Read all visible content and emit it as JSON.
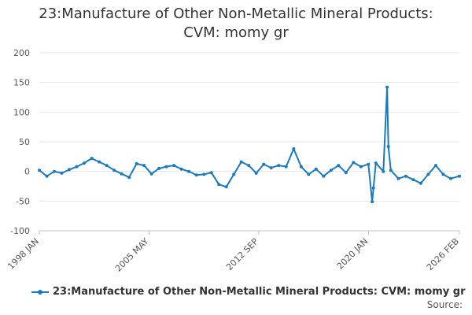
{
  "title_line1": "23:Manufacture of Other Non-Metallic Mineral Products:",
  "title_line2": "CVM: momy gr",
  "source_label": "Source:",
  "chart_data": {
    "type": "line",
    "title": "23:Manufacture of Other Non-Metallic Mineral Products: CVM: momy gr",
    "xlabel": "",
    "ylabel": "",
    "ylim": [
      -100,
      200
    ],
    "y_ticks": [
      200,
      150,
      100,
      50,
      0,
      -50,
      -100
    ],
    "x_tick_labels": [
      "1998 JAN",
      "2005 MAY",
      "2012 SEP",
      "2020 JAN",
      "2026 FEB"
    ],
    "x_range": [
      "1998 JAN",
      "2026 FEB"
    ],
    "grid": true,
    "legend_position": "bottom",
    "color": "#1a7abf",
    "series": [
      {
        "name": "23:Manufacture of Other Non-Metallic Mineral Products: CVM: momy gr",
        "points": [
          [
            "1998 JAN",
            2
          ],
          [
            "1998 JUL",
            -8
          ],
          [
            "1999 JAN",
            0
          ],
          [
            "1999 JUL",
            -3
          ],
          [
            "2000 JAN",
            3
          ],
          [
            "2000 JUL",
            8
          ],
          [
            "2001 JAN",
            14
          ],
          [
            "2001 JUL",
            22
          ],
          [
            "2002 JAN",
            16
          ],
          [
            "2002 JUL",
            10
          ],
          [
            "2003 JAN",
            2
          ],
          [
            "2003 JUL",
            -4
          ],
          [
            "2004 JAN",
            -10
          ],
          [
            "2004 JUL",
            13
          ],
          [
            "2005 JAN",
            10
          ],
          [
            "2005 JUL",
            -4
          ],
          [
            "2006 JAN",
            5
          ],
          [
            "2006 JUL",
            8
          ],
          [
            "2007 JAN",
            10
          ],
          [
            "2007 JUL",
            4
          ],
          [
            "2008 JAN",
            0
          ],
          [
            "2008 JUL",
            -6
          ],
          [
            "2009 JAN",
            -5
          ],
          [
            "2009 JUL",
            -2
          ],
          [
            "2010 JAN",
            -22
          ],
          [
            "2010 JUL",
            -26
          ],
          [
            "2011 JAN",
            -5
          ],
          [
            "2011 JUL",
            16
          ],
          [
            "2012 JAN",
            10
          ],
          [
            "2012 JUL",
            -3
          ],
          [
            "2013 JAN",
            12
          ],
          [
            "2013 JUL",
            6
          ],
          [
            "2014 JAN",
            10
          ],
          [
            "2014 JUL",
            8
          ],
          [
            "2015 JAN",
            38
          ],
          [
            "2015 JUL",
            8
          ],
          [
            "2016 JAN",
            -5
          ],
          [
            "2016 JUL",
            4
          ],
          [
            "2017 JAN",
            -8
          ],
          [
            "2017 JUL",
            2
          ],
          [
            "2018 JAN",
            10
          ],
          [
            "2018 JUL",
            -2
          ],
          [
            "2019 JAN",
            15
          ],
          [
            "2019 JUL",
            8
          ],
          [
            "2020 JAN",
            12
          ],
          [
            "2020 APR",
            -51
          ],
          [
            "2020 MAY",
            -28
          ],
          [
            "2020 JUL",
            14
          ],
          [
            "2021 JAN",
            0
          ],
          [
            "2021 APR",
            142
          ],
          [
            "2021 MAY",
            42
          ],
          [
            "2021 JUL",
            2
          ],
          [
            "2022 JAN",
            -12
          ],
          [
            "2022 JUL",
            -8
          ],
          [
            "2023 JAN",
            -14
          ],
          [
            "2023 JUL",
            -20
          ],
          [
            "2024 JAN",
            -5
          ],
          [
            "2024 JUL",
            10
          ],
          [
            "2025 JAN",
            -5
          ],
          [
            "2025 JUL",
            -12
          ],
          [
            "2026 FEB",
            -8
          ]
        ]
      }
    ]
  }
}
